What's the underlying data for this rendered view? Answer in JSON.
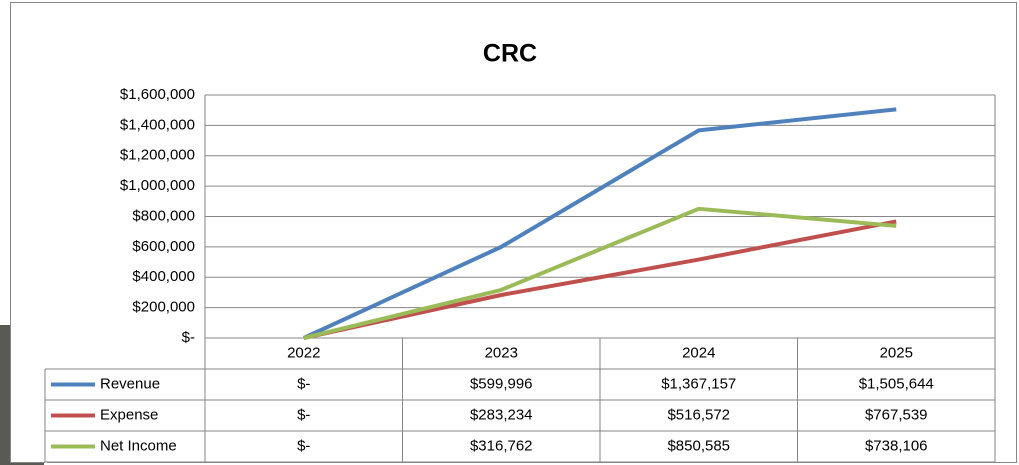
{
  "chart_data": {
    "type": "line",
    "title": "CRC",
    "categories": [
      "2022",
      "2023",
      "2024",
      "2025"
    ],
    "series": [
      {
        "name": "Revenue",
        "color": "#4f81bd",
        "values": [
          0,
          599996,
          1367157,
          1505644
        ],
        "value_labels": [
          "$-",
          "$599,996",
          "$1,367,157",
          "$1,505,644"
        ]
      },
      {
        "name": "Expense",
        "color": "#c0504d",
        "values": [
          0,
          283234,
          516572,
          767539
        ],
        "value_labels": [
          "$-",
          "$283,234",
          "$516,572",
          "$767,539"
        ]
      },
      {
        "name": "Net Income",
        "color": "#9bbb59",
        "values": [
          0,
          316762,
          850585,
          738106
        ],
        "value_labels": [
          "$-",
          "$316,762",
          "$850,585",
          "$738,106"
        ]
      }
    ],
    "ylim": [
      0,
      1600000
    ],
    "yticks": [
      {
        "value": 0,
        "label": "$-"
      },
      {
        "value": 200000,
        "label": "$200,000"
      },
      {
        "value": 400000,
        "label": "$400,000"
      },
      {
        "value": 600000,
        "label": "$600,000"
      },
      {
        "value": 800000,
        "label": "$800,000"
      },
      {
        "value": 1000000,
        "label": "$1,000,000"
      },
      {
        "value": 1200000,
        "label": "$1,200,000"
      },
      {
        "value": 1400000,
        "label": "$1,400,000"
      },
      {
        "value": 1600000,
        "label": "$1,600,000"
      }
    ],
    "grid": true
  }
}
